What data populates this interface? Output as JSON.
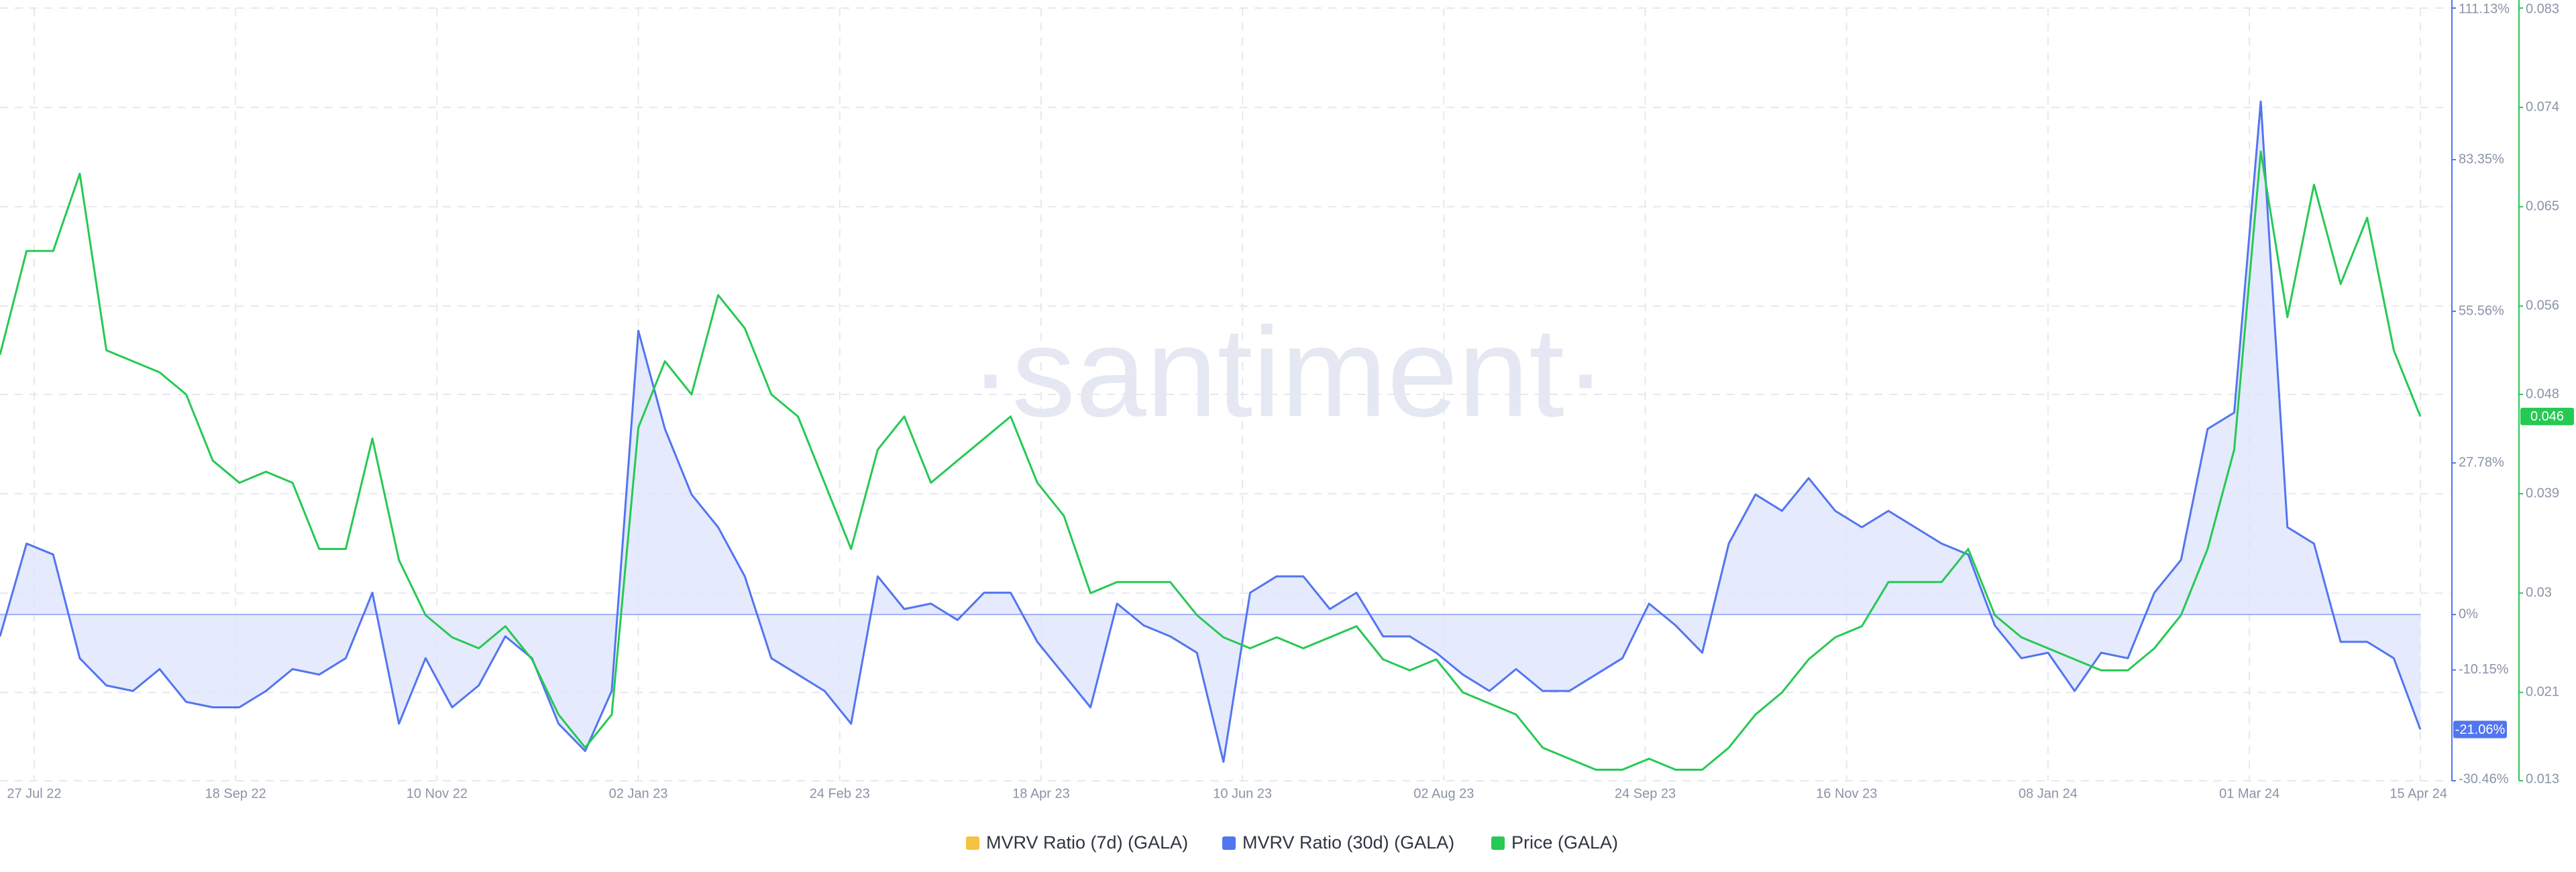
{
  "chart_data": {
    "type": "line",
    "watermark": "·santiment·",
    "grid": true,
    "x": [
      "2022-07-18",
      "2022-07-25",
      "2022-08-01",
      "2022-08-08",
      "2022-08-15",
      "2022-08-22",
      "2022-08-29",
      "2022-09-05",
      "2022-09-12",
      "2022-09-19",
      "2022-09-26",
      "2022-10-03",
      "2022-10-10",
      "2022-10-17",
      "2022-10-24",
      "2022-10-31",
      "2022-11-07",
      "2022-11-14",
      "2022-11-21",
      "2022-11-28",
      "2022-12-05",
      "2022-12-12",
      "2022-12-19",
      "2022-12-26",
      "2023-01-02",
      "2023-01-09",
      "2023-01-16",
      "2023-01-23",
      "2023-01-30",
      "2023-02-06",
      "2023-02-13",
      "2023-02-20",
      "2023-02-27",
      "2023-03-06",
      "2023-03-13",
      "2023-03-20",
      "2023-03-27",
      "2023-04-03",
      "2023-04-10",
      "2023-04-17",
      "2023-04-24",
      "2023-05-01",
      "2023-05-08",
      "2023-05-15",
      "2023-05-22",
      "2023-05-29",
      "2023-06-05",
      "2023-06-12",
      "2023-06-19",
      "2023-06-26",
      "2023-07-03",
      "2023-07-10",
      "2023-07-17",
      "2023-07-24",
      "2023-07-31",
      "2023-08-07",
      "2023-08-14",
      "2023-08-21",
      "2023-08-28",
      "2023-09-04",
      "2023-09-11",
      "2023-09-18",
      "2023-09-25",
      "2023-10-02",
      "2023-10-09",
      "2023-10-16",
      "2023-10-23",
      "2023-10-30",
      "2023-11-06",
      "2023-11-13",
      "2023-11-20",
      "2023-11-27",
      "2023-12-04",
      "2023-12-11",
      "2023-12-18",
      "2023-12-25",
      "2024-01-01",
      "2024-01-08",
      "2024-01-15",
      "2024-01-22",
      "2024-01-29",
      "2024-02-05",
      "2024-02-12",
      "2024-02-19",
      "2024-02-26",
      "2024-03-04",
      "2024-03-11",
      "2024-03-18",
      "2024-03-25",
      "2024-04-01",
      "2024-04-08",
      "2024-04-15"
    ],
    "xlim": [
      "2022-07-18",
      "2024-04-15"
    ],
    "xticks": [
      {
        "value": "2022-07-27",
        "label": "27 Jul 22"
      },
      {
        "value": "2022-09-18",
        "label": "18 Sep 22"
      },
      {
        "value": "2022-11-10",
        "label": "10 Nov 22"
      },
      {
        "value": "2023-01-02",
        "label": "02 Jan 23"
      },
      {
        "value": "2023-02-24",
        "label": "24 Feb 23"
      },
      {
        "value": "2023-04-18",
        "label": "18 Apr 23"
      },
      {
        "value": "2023-06-10",
        "label": "10 Jun 23"
      },
      {
        "value": "2023-08-02",
        "label": "02 Aug 23"
      },
      {
        "value": "2023-09-24",
        "label": "24 Sep 23"
      },
      {
        "value": "2023-11-16",
        "label": "16 Nov 23"
      },
      {
        "value": "2024-01-08",
        "label": "08 Jan 24"
      },
      {
        "value": "2024-03-01",
        "label": "01 Mar 24"
      },
      {
        "value": "2024-04-15",
        "label": "15 Apr 24"
      }
    ],
    "ylim": [
      -30.46,
      111.13
    ],
    "yticks": [
      {
        "value": 111.13,
        "label": "111.13%"
      },
      {
        "value": 83.35,
        "label": "83.35%"
      },
      {
        "value": 55.56,
        "label": "55.56%"
      },
      {
        "value": 27.78,
        "label": "27.78%"
      },
      {
        "value": 0,
        "label": "0%"
      },
      {
        "value": -10.15,
        "label": "-10.15%"
      },
      {
        "value": -30.46,
        "label": "-30.46%"
      }
    ],
    "y2lim": [
      0.013,
      0.083
    ],
    "y2ticks": [
      0.083,
      0.074,
      0.065,
      0.056,
      0.048,
      0.039,
      0.03,
      0.021,
      0.013
    ],
    "series": [
      {
        "name": "MVRV Ratio (7d) (GALA)",
        "color": "#f5c342"
      },
      {
        "name": "MVRV Ratio (30d) (GALA)",
        "color": "#5275f0",
        "fill": "#dfe5fb",
        "values": [
          -4,
          13,
          11,
          -8,
          -13,
          -14,
          -10,
          -16,
          -17,
          -17,
          -14,
          -10,
          -11,
          -8,
          4,
          -20,
          -8,
          -17,
          -13,
          -4,
          -8,
          -20,
          -25,
          -14,
          52,
          34,
          22,
          16,
          7,
          -8,
          -11,
          -14,
          -20,
          7,
          1,
          2,
          -1,
          4,
          4,
          -5,
          -11,
          -17,
          2,
          -2,
          -4,
          -7,
          -27,
          4,
          7,
          7,
          1,
          4,
          -4,
          -4,
          -7,
          -11,
          -14,
          -10,
          -14,
          -14,
          -11,
          -8,
          2,
          -2,
          -7,
          13,
          22,
          19,
          25,
          19,
          16,
          19,
          16,
          13,
          11,
          -2,
          -8,
          -7,
          -14,
          -7,
          -8,
          4,
          10,
          34,
          37,
          94,
          16,
          13,
          -5,
          -5,
          -8,
          -21.06
        ],
        "last_value_label": "-21.06%"
      },
      {
        "name": "Price (GALA)",
        "color": "#26c953",
        "axis": "y2",
        "values": [
          0.0516,
          0.061,
          0.061,
          0.068,
          0.052,
          0.051,
          0.05,
          0.048,
          0.042,
          0.04,
          0.041,
          0.04,
          0.034,
          0.034,
          0.044,
          0.033,
          0.028,
          0.026,
          0.025,
          0.027,
          0.024,
          0.019,
          0.016,
          0.019,
          0.045,
          0.051,
          0.048,
          0.057,
          0.054,
          0.048,
          0.046,
          0.04,
          0.034,
          0.043,
          0.046,
          0.04,
          0.042,
          0.044,
          0.046,
          0.04,
          0.037,
          0.03,
          0.031,
          0.031,
          0.031,
          0.028,
          0.026,
          0.025,
          0.026,
          0.025,
          0.026,
          0.027,
          0.024,
          0.023,
          0.024,
          0.021,
          0.02,
          0.019,
          0.016,
          0.015,
          0.014,
          0.014,
          0.015,
          0.014,
          0.014,
          0.016,
          0.019,
          0.021,
          0.024,
          0.026,
          0.027,
          0.031,
          0.031,
          0.031,
          0.034,
          0.028,
          0.026,
          0.025,
          0.024,
          0.023,
          0.023,
          0.025,
          0.028,
          0.034,
          0.043,
          0.07,
          0.055,
          0.067,
          0.058,
          0.064,
          0.052,
          0.046
        ],
        "last_value_label": "0.046"
      }
    ]
  }
}
